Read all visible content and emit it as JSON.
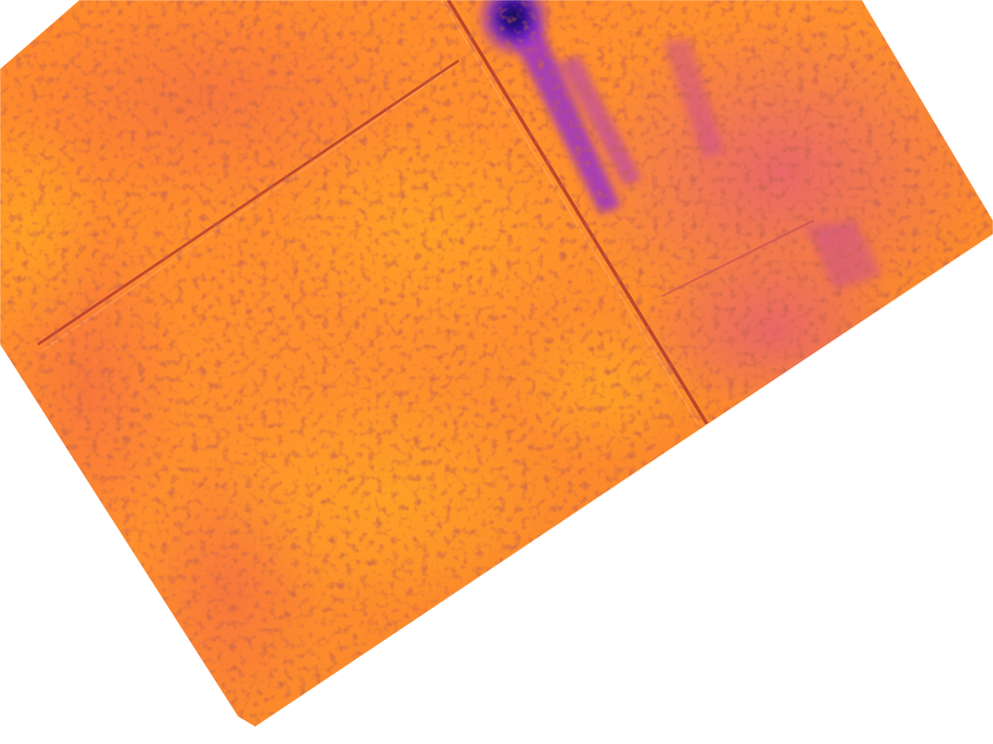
{
  "image": {
    "kind": "thermal-aerial-photo",
    "palette": {
      "hot_yellow": "#ffb020",
      "warm_orange": "#ff8a2a",
      "mid_coral": "#f4704a",
      "cool_magenta": "#d8489a",
      "cold_purple": "#7a2ad0",
      "coldest_navy": "#20106a",
      "background": "#ffffff"
    },
    "features": {
      "field_boundary_lines": 2,
      "cold_spot": "top-center",
      "background_visible": true
    }
  }
}
